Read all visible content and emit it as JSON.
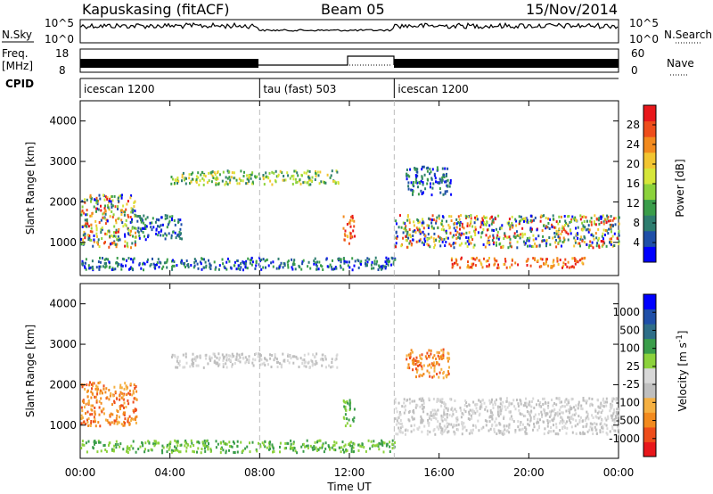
{
  "header": {
    "station": "Kapuskasing (fitACF)",
    "beam": "Beam 05",
    "date": "15/Nov/2014"
  },
  "side_labels": {
    "nsky": "N.Sky",
    "freq_top": "Freq.",
    "freq_unit": "[MHz]",
    "cpid": "CPID",
    "nsearch": "N.Search",
    "nave": "Nave"
  },
  "mini_ticks": {
    "nsky_top": "10^5",
    "nsky_bottom": "10^0",
    "freq_top": "18",
    "freq_bottom": "8",
    "nave_top": "60",
    "nave_bottom": "0",
    "nsearch_top": "10^5",
    "nsearch_bottom": "10^0"
  },
  "cpid_segments": [
    {
      "label": "icescan 1200",
      "start": 0,
      "end": 8
    },
    {
      "label": "tau (fast) 503",
      "start": 8,
      "end": 14
    },
    {
      "label": "icescan 1200",
      "start": 14,
      "end": 24
    }
  ],
  "colors": {
    "power": [
      "#0000ff",
      "#1f4fa8",
      "#2e7d6f",
      "#3a9d4a",
      "#8cd23c",
      "#d6e63a",
      "#f2c531",
      "#f28a1e",
      "#ee4d1b",
      "#e8171b"
    ],
    "velocity": [
      "#e8171b",
      "#ee4d1b",
      "#f28a1e",
      "#f5b042",
      "#bfbfbf",
      "#d8d8d8",
      "#8cd23c",
      "#3a9d4a",
      "#2e6e88",
      "#1f4fa8",
      "#0000ff"
    ]
  },
  "chart_data": [
    {
      "type": "heatmap",
      "title": "",
      "xlabel": "",
      "ylabel": "Slant Range [km]",
      "xlim": [
        0,
        24
      ],
      "ylim": [
        180,
        4500
      ],
      "x_ticks": [
        0,
        4,
        8,
        12,
        16,
        20,
        24
      ],
      "y_ticks": [
        1000,
        2000,
        3000,
        4000
      ],
      "y_tick_labels": [
        "1000",
        "2000",
        "3000",
        "4000"
      ],
      "colorbar": {
        "label": "Power [dB]",
        "ticks": [
          "4",
          "8",
          "12",
          "16",
          "20",
          "24",
          "28"
        ],
        "range": [
          0,
          30
        ]
      },
      "regions": [
        {
          "t": [
            0.0,
            2.5
          ],
          "r": [
            900,
            2200
          ],
          "level": "mixed"
        },
        {
          "t": [
            2.5,
            4.5
          ],
          "r": [
            1100,
            1700
          ],
          "level": "low"
        },
        {
          "t": [
            4.0,
            11.5
          ],
          "r": [
            2450,
            2800
          ],
          "level": "mid"
        },
        {
          "t": [
            11.7,
            12.2
          ],
          "r": [
            1000,
            1700
          ],
          "level": "high"
        },
        {
          "t": [
            0.0,
            14.0
          ],
          "r": [
            350,
            650
          ],
          "level": "low"
        },
        {
          "t": [
            14.0,
            24.0
          ],
          "r": [
            900,
            1700
          ],
          "level": "mixed"
        },
        {
          "t": [
            16.5,
            22.5
          ],
          "r": [
            400,
            650
          ],
          "level": "high"
        },
        {
          "t": [
            14.5,
            16.5
          ],
          "r": [
            2200,
            2900
          ],
          "level": "low"
        }
      ]
    },
    {
      "type": "heatmap",
      "title": "",
      "xlabel": "Time UT",
      "ylabel": "Slant Range [km]",
      "xlim": [
        0,
        24
      ],
      "ylim": [
        180,
        4500
      ],
      "x_ticks": [
        0,
        4,
        8,
        12,
        16,
        20,
        24
      ],
      "x_tick_labels": [
        "00:00",
        "04:00",
        "08:00",
        "12:00",
        "16:00",
        "20:00",
        "00:00"
      ],
      "y_ticks": [
        1000,
        2000,
        3000,
        4000
      ],
      "y_tick_labels": [
        "1000",
        "2000",
        "3000",
        "4000"
      ],
      "colorbar": {
        "label": "Velocity [m s^-1]",
        "ticks": [
          "1000",
          "500",
          "100",
          "25",
          "-25",
          "-100",
          "-500",
          "-1000"
        ],
        "range": [
          -1000,
          1000
        ]
      },
      "regions": [
        {
          "t": [
            0.0,
            2.5
          ],
          "r": [
            1000,
            2100
          ],
          "level": "negative"
        },
        {
          "t": [
            4.0,
            11.5
          ],
          "r": [
            2450,
            2800
          ],
          "level": "near-zero"
        },
        {
          "t": [
            11.7,
            12.2
          ],
          "r": [
            1000,
            1700
          ],
          "level": "positive"
        },
        {
          "t": [
            14.0,
            24.0
          ],
          "r": [
            800,
            1700
          ],
          "level": "near-zero"
        },
        {
          "t": [
            0.0,
            14.0
          ],
          "r": [
            350,
            650
          ],
          "level": "positive"
        },
        {
          "t": [
            14.5,
            16.5
          ],
          "r": [
            2200,
            2900
          ],
          "level": "negative"
        }
      ]
    }
  ]
}
